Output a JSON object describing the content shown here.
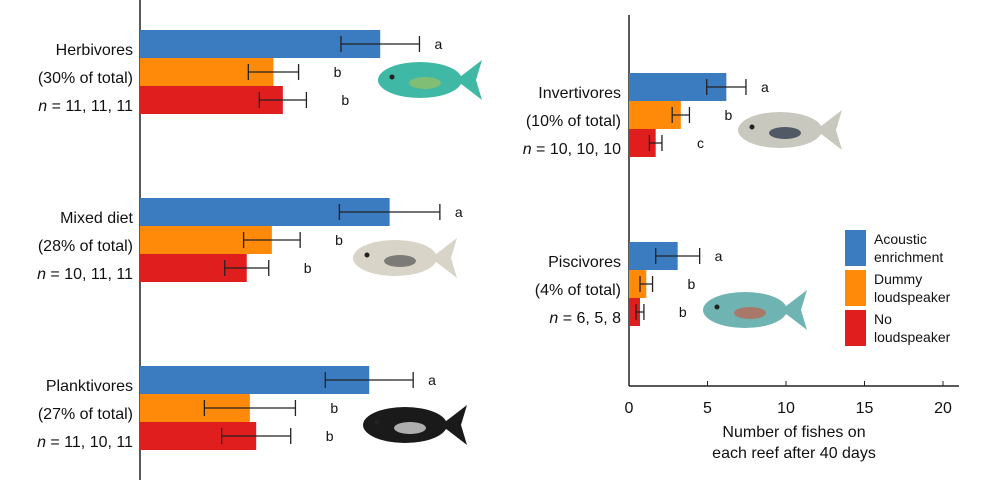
{
  "chart_data": [
    {
      "type": "bar",
      "orientation": "horizontal",
      "panel": "left",
      "categories": [
        {
          "name": "Herbivores",
          "share": "(30% of total)",
          "n": "= 11, 11, 11"
        },
        {
          "name": "Mixed diet",
          "share": "(28% of total)",
          "n": "= 10, 11, 11"
        },
        {
          "name": "Planktivores",
          "share": "(27% of total)",
          "n": "= 11, 10, 11"
        }
      ],
      "series": [
        {
          "name": "Acoustic enrichment",
          "values": [
            15.3,
            15.9,
            14.6
          ],
          "errors": [
            2.5,
            3.2,
            2.8
          ],
          "letters": [
            "a",
            "a",
            "a"
          ]
        },
        {
          "name": "Dummy loudspeaker",
          "values": [
            8.5,
            8.4,
            7.0
          ],
          "errors": [
            1.6,
            1.8,
            2.9
          ],
          "letters": [
            "b",
            "b",
            "b"
          ]
        },
        {
          "name": "No loudspeaker",
          "values": [
            9.1,
            6.8,
            7.4
          ],
          "errors": [
            1.5,
            1.4,
            2.2
          ],
          "letters": [
            "b",
            "b",
            "b"
          ]
        }
      ]
    },
    {
      "type": "bar",
      "orientation": "horizontal",
      "panel": "right",
      "categories": [
        {
          "name": "Invertivores",
          "share": "(10% of total)",
          "n": "= 10, 10, 10"
        },
        {
          "name": "Piscivores",
          "share": "(4% of total)",
          "n": "= 6, 5, 8"
        }
      ],
      "series": [
        {
          "name": "Acoustic enrichment",
          "values": [
            6.2,
            3.1
          ],
          "errors": [
            1.25,
            1.4
          ],
          "letters": [
            "a",
            "a"
          ]
        },
        {
          "name": "Dummy loudspeaker",
          "values": [
            3.3,
            1.1
          ],
          "errors": [
            0.55,
            0.4
          ],
          "letters": [
            "b",
            "b"
          ]
        },
        {
          "name": "No loudspeaker",
          "values": [
            1.7,
            0.7
          ],
          "errors": [
            0.4,
            0.25
          ],
          "letters": [
            "c",
            "b"
          ]
        }
      ],
      "xlabel": [
        "Number of fishes on",
        "each reef after 40 days"
      ],
      "xlim": [
        0,
        21
      ],
      "xticks": [
        0,
        5,
        10,
        15,
        20
      ],
      "legend": [
        "Acoustic",
        "enrichment",
        "Dummy",
        "loudspeaker",
        "No",
        "loudspeaker"
      ],
      "legend_position": "right"
    }
  ],
  "n_label": "n",
  "colors": [
    "#3b7bbf",
    "#ff8a0a",
    "#e01e1e"
  ]
}
